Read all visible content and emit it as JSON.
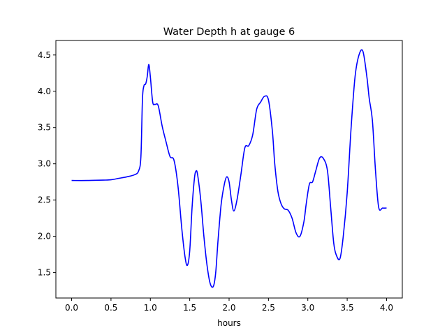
{
  "chart_data": {
    "type": "line",
    "title": "Water Depth h at gauge 6",
    "xlabel": "hours",
    "ylabel": "",
    "xlim": [
      -0.2,
      4.2
    ],
    "ylim": [
      1.15,
      4.7
    ],
    "xticks": [
      0.0,
      0.5,
      1.0,
      1.5,
      2.0,
      2.5,
      3.0,
      3.5,
      4.0
    ],
    "xtick_labels": [
      "0.0",
      "0.5",
      "1.0",
      "1.5",
      "2.0",
      "2.5",
      "3.0",
      "3.5",
      "4.0"
    ],
    "yticks": [
      1.5,
      2.0,
      2.5,
      3.0,
      3.5,
      4.0,
      4.5
    ],
    "ytick_labels": [
      "1.5",
      "2.0",
      "2.5",
      "3.0",
      "3.5",
      "4.0",
      "4.5"
    ],
    "grid": false,
    "line_color": "#0000ff",
    "series": [
      {
        "name": "",
        "x": [
          0.0,
          0.2,
          0.4,
          0.5,
          0.6,
          0.7,
          0.8,
          0.85,
          0.88,
          0.9,
          0.92,
          0.94,
          0.96,
          0.98,
          1.0,
          1.03,
          1.06,
          1.1,
          1.15,
          1.2,
          1.25,
          1.3,
          1.35,
          1.4,
          1.44,
          1.47,
          1.5,
          1.53,
          1.56,
          1.58,
          1.6,
          1.64,
          1.68,
          1.72,
          1.76,
          1.8,
          1.83,
          1.86,
          1.9,
          1.94,
          1.97,
          2.0,
          2.03,
          2.06,
          2.1,
          2.15,
          2.2,
          2.25,
          2.3,
          2.35,
          2.4,
          2.45,
          2.5,
          2.55,
          2.58,
          2.62,
          2.66,
          2.7,
          2.75,
          2.8,
          2.85,
          2.9,
          2.95,
          2.98,
          3.02,
          3.06,
          3.1,
          3.15,
          3.2,
          3.25,
          3.29,
          3.33,
          3.37,
          3.41,
          3.45,
          3.5,
          3.55,
          3.6,
          3.65,
          3.7,
          3.75,
          3.78,
          3.82,
          3.86,
          3.9,
          3.95,
          4.0
        ],
        "y": [
          2.77,
          2.77,
          2.775,
          2.78,
          2.8,
          2.82,
          2.85,
          2.9,
          3.1,
          3.9,
          4.08,
          4.1,
          4.2,
          4.37,
          4.2,
          3.85,
          3.82,
          3.8,
          3.52,
          3.3,
          3.1,
          3.05,
          2.7,
          2.1,
          1.72,
          1.6,
          1.8,
          2.4,
          2.8,
          2.9,
          2.85,
          2.5,
          2.0,
          1.6,
          1.35,
          1.31,
          1.5,
          1.95,
          2.45,
          2.72,
          2.82,
          2.75,
          2.5,
          2.35,
          2.5,
          2.85,
          3.22,
          3.25,
          3.4,
          3.75,
          3.85,
          3.93,
          3.88,
          3.45,
          3.0,
          2.62,
          2.45,
          2.38,
          2.36,
          2.25,
          2.05,
          2.0,
          2.2,
          2.45,
          2.72,
          2.75,
          2.9,
          3.08,
          3.07,
          2.9,
          2.4,
          1.9,
          1.72,
          1.7,
          2.0,
          2.6,
          3.5,
          4.2,
          4.5,
          4.55,
          4.2,
          3.9,
          3.6,
          2.9,
          2.4,
          2.39,
          2.39
        ]
      }
    ]
  }
}
